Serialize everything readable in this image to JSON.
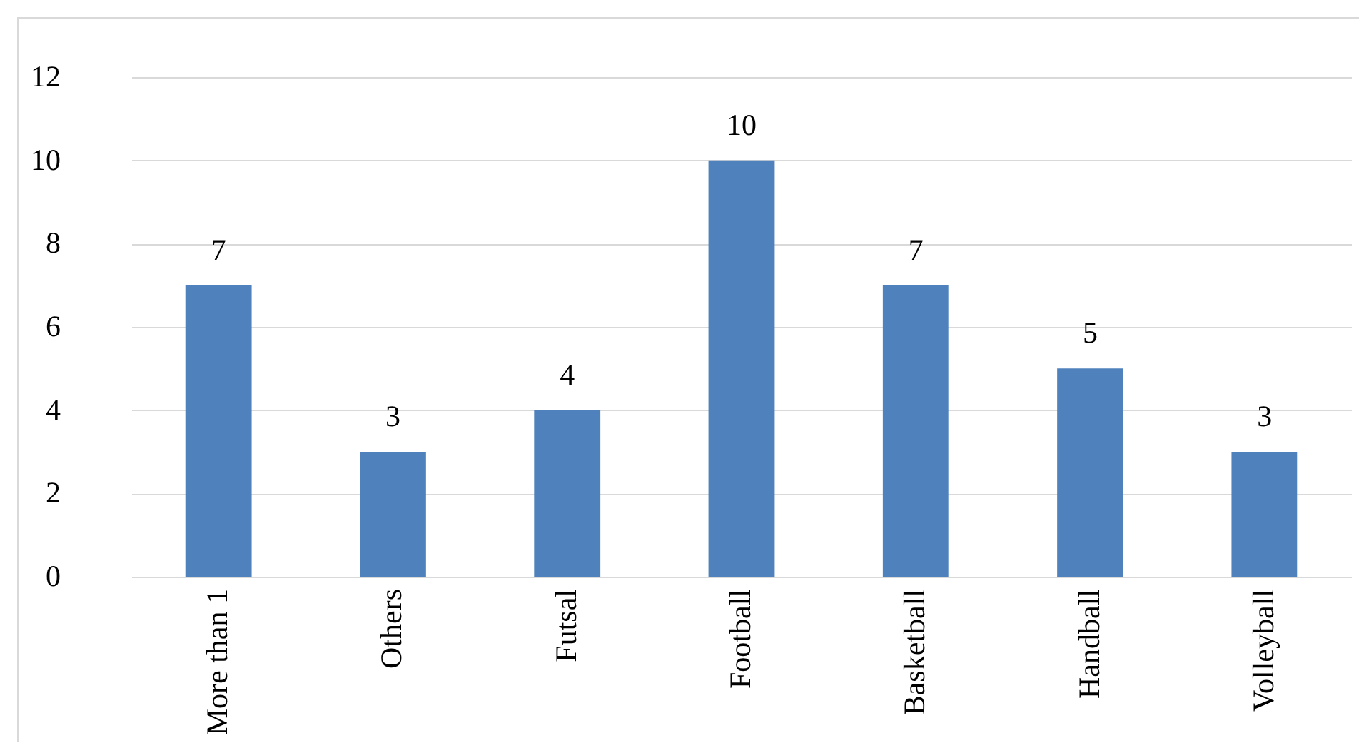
{
  "chart_data": {
    "type": "bar",
    "categories": [
      "More than 1",
      "Others",
      "Futsal",
      "Football",
      "Basketball",
      "Handball",
      "Volleyball"
    ],
    "values": [
      7,
      3,
      4,
      10,
      7,
      5,
      3
    ],
    "color": "#4f81bd",
    "ylim": [
      0,
      12
    ],
    "yticks": [
      0,
      2,
      4,
      6,
      8,
      10,
      12
    ],
    "grid": "y",
    "data_labels": true
  }
}
